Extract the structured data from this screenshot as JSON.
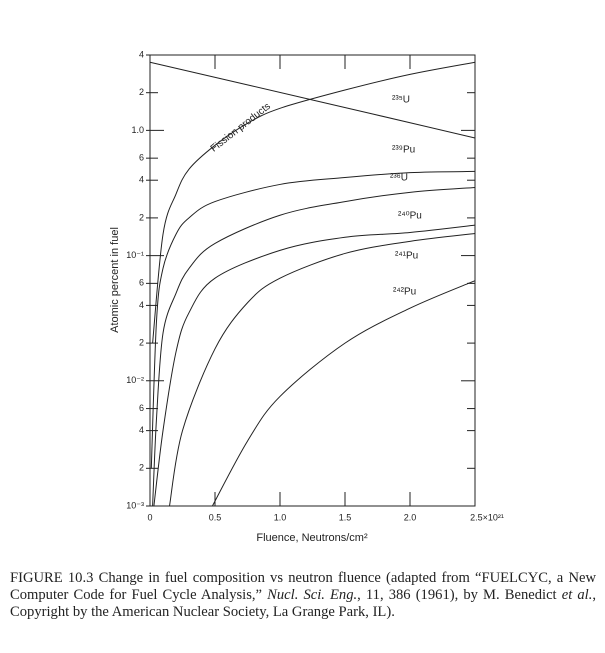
{
  "chart_data": {
    "type": "line",
    "log_y": true,
    "ylabel": "Atomic percent in fuel",
    "xlabel": "Fluence, Neutrons/cm²",
    "xlim": [
      0,
      2.5
    ],
    "ylim": [
      0.001,
      4
    ],
    "xticks": [
      0,
      0.5,
      {
        "value": 1,
        "label": "1.0"
      },
      1.5,
      {
        "value": 2,
        "label": "2.0"
      },
      {
        "value": 2.5,
        "label": "2.5×10²¹"
      }
    ],
    "yticks": [
      4,
      2,
      {
        "value": 1,
        "label": "1.0"
      },
      {
        "value": 0.6,
        "label": "6"
      },
      {
        "value": 0.4,
        "label": "4"
      },
      {
        "value": 0.2,
        "label": "2"
      },
      {
        "value": 0.1,
        "label": "10⁻¹"
      },
      {
        "value": 0.06,
        "label": "6"
      },
      {
        "value": 0.04,
        "label": "4"
      },
      {
        "value": 0.02,
        "label": "2"
      },
      {
        "value": 0.01,
        "label": "10⁻²"
      },
      {
        "value": 0.006,
        "label": "6"
      },
      {
        "value": 0.004,
        "label": "4"
      },
      {
        "value": 0.002,
        "label": "2"
      },
      {
        "value": 0.001,
        "label": "10⁻³"
      }
    ],
    "series": [
      {
        "name": "Fission products",
        "color": "#222",
        "x": [
          0.02,
          0.1,
          0.2,
          0.3,
          0.5,
          0.75,
          1.0,
          1.5,
          2.0,
          2.5
        ],
        "values": [
          0.02,
          0.148,
          0.31,
          0.49,
          0.76,
          1.14,
          1.5,
          2.1,
          2.8,
          3.5
        ]
      },
      {
        "name": "²³⁵U",
        "color": "#222",
        "x": [
          0,
          1.25,
          2.5
        ],
        "values": [
          3.5,
          1.75,
          0.87
        ]
      },
      {
        "name": "²³⁹Pu",
        "color": "#222",
        "x": [
          0.01,
          0.05,
          0.1,
          0.2,
          0.3,
          0.5,
          1.0,
          1.5,
          2.0,
          2.5
        ],
        "values": [
          0.002,
          0.03,
          0.079,
          0.148,
          0.2,
          0.27,
          0.37,
          0.42,
          0.46,
          0.47
        ]
      },
      {
        "name": "²³⁶U",
        "color": "#222",
        "x": [
          0.02,
          0.05,
          0.1,
          0.2,
          0.3,
          0.5,
          1.0,
          1.5,
          2.0,
          2.5
        ],
        "values": [
          0.001,
          0.005,
          0.024,
          0.05,
          0.079,
          0.125,
          0.21,
          0.27,
          0.32,
          0.35
        ]
      },
      {
        "name": "²⁴⁰Pu",
        "color": "#222",
        "x": [
          0.03,
          0.1,
          0.2,
          0.3,
          0.5,
          1.0,
          1.5,
          2.0,
          2.5
        ],
        "values": [
          0.001,
          0.004,
          0.017,
          0.035,
          0.066,
          0.11,
          0.14,
          0.153,
          0.175
        ]
      },
      {
        "name": "²⁴¹Pu",
        "color": "#222",
        "x": [
          0.15,
          0.25,
          0.5,
          0.75,
          1.0,
          1.5,
          2.0,
          2.5
        ],
        "values": [
          0.001,
          0.004,
          0.018,
          0.042,
          0.066,
          0.104,
          0.13,
          0.15
        ]
      },
      {
        "name": "²⁴²Pu",
        "color": "#222",
        "x": [
          0.48,
          0.75,
          1.0,
          1.5,
          2.0,
          2.5
        ],
        "values": [
          0.001,
          0.0033,
          0.0075,
          0.02,
          0.038,
          0.063
        ]
      }
    ],
    "caption": [
      {
        "text": "FIGURE 10.3  Change in fuel composition vs neutron fluence (adapted from “FUELCYC, a New Computer Code for Fuel Cycle Analysis,” ",
        "style": "normal"
      },
      {
        "text": "Nucl. Sci. Eng.",
        "style": "italic"
      },
      {
        "text": ", 11, 386 (1961), by M. Benedict ",
        "style": "normal"
      },
      {
        "text": "et al.",
        "style": "italic"
      },
      {
        "text": ", Copyright by the American Nuclear Society, La Grange Park, IL).",
        "style": "normal"
      }
    ]
  }
}
